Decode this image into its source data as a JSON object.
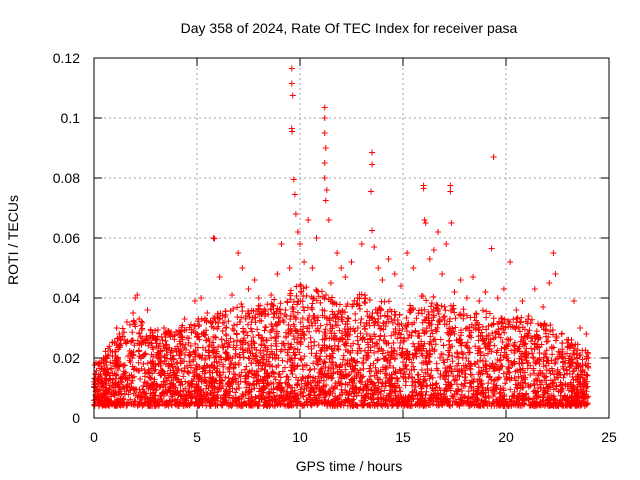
{
  "chart_data": {
    "type": "scatter",
    "title": "Day 358 of 2024, Rate Of TEC Index for receiver pasa",
    "xlabel": "GPS time / hours",
    "ylabel": "ROTI / TECUs",
    "xlim": [
      0,
      25
    ],
    "ylim": [
      0,
      0.12
    ],
    "x_ticks": [
      0,
      5,
      10,
      15,
      20,
      25
    ],
    "x_tick_labels": [
      "0",
      "5",
      "10",
      "15",
      "20",
      "25"
    ],
    "y_ticks": [
      0,
      0.02,
      0.04,
      0.06,
      0.08,
      0.1,
      0.12
    ],
    "y_tick_labels": [
      "0",
      "0.02",
      "0.04",
      "0.06",
      "0.08",
      "0.1",
      "0.12"
    ],
    "grid": true,
    "marker": "+",
    "marker_color": "#ff0000",
    "data_range_x": [
      0,
      24
    ],
    "series": [
      {
        "name": "ROTI",
        "points": [
          [
            0.1,
            0.009
          ],
          [
            0.2,
            0.018
          ],
          [
            0.4,
            0.012
          ],
          [
            0.6,
            0.015
          ],
          [
            0.9,
            0.022
          ],
          [
            1.1,
            0.03
          ],
          [
            1.3,
            0.026
          ],
          [
            1.6,
            0.032
          ],
          [
            1.9,
            0.035
          ],
          [
            2.0,
            0.04
          ],
          [
            2.1,
            0.041
          ],
          [
            2.4,
            0.018
          ],
          [
            2.6,
            0.036
          ],
          [
            2.8,
            0.025
          ],
          [
            3.1,
            0.02
          ],
          [
            3.4,
            0.03
          ],
          [
            3.7,
            0.028
          ],
          [
            4.0,
            0.022
          ],
          [
            4.2,
            0.005
          ],
          [
            4.4,
            0.033
          ],
          [
            4.7,
            0.024
          ],
          [
            4.9,
            0.039
          ],
          [
            5.2,
            0.04
          ],
          [
            5.5,
            0.035
          ],
          [
            5.8,
            0.06
          ],
          [
            5.85,
            0.0598
          ],
          [
            6.1,
            0.047
          ],
          [
            6.4,
            0.03
          ],
          [
            6.7,
            0.041
          ],
          [
            7.0,
            0.055
          ],
          [
            7.2,
            0.05
          ],
          [
            7.5,
            0.043
          ],
          [
            7.8,
            0.046
          ],
          [
            8.0,
            0.04
          ],
          [
            8.3,
            0.034
          ],
          [
            8.6,
            0.041
          ],
          [
            8.9,
            0.048
          ],
          [
            9.1,
            0.058
          ],
          [
            9.3,
            0.036
          ],
          [
            9.5,
            0.05
          ],
          [
            9.6,
            0.1165
          ],
          [
            9.6,
            0.1115
          ],
          [
            9.65,
            0.1075
          ],
          [
            9.6,
            0.0965
          ],
          [
            9.62,
            0.0955
          ],
          [
            9.7,
            0.0795
          ],
          [
            9.75,
            0.0745
          ],
          [
            9.8,
            0.068
          ],
          [
            9.9,
            0.062
          ],
          [
            10.0,
            0.058
          ],
          [
            10.2,
            0.052
          ],
          [
            10.4,
            0.066
          ],
          [
            10.6,
            0.05
          ],
          [
            10.8,
            0.06
          ],
          [
            11.2,
            0.1035
          ],
          [
            11.2,
            0.1
          ],
          [
            11.2,
            0.095
          ],
          [
            11.25,
            0.09
          ],
          [
            11.2,
            0.085
          ],
          [
            11.2,
            0.08
          ],
          [
            11.3,
            0.076
          ],
          [
            11.25,
            0.0725
          ],
          [
            11.4,
            0.066
          ],
          [
            11.5,
            0.045
          ],
          [
            11.8,
            0.055
          ],
          [
            12.0,
            0.05
          ],
          [
            12.2,
            0.047
          ],
          [
            12.5,
            0.052
          ],
          [
            12.8,
            0.04
          ],
          [
            13.0,
            0.058
          ],
          [
            13.5,
            0.0885
          ],
          [
            13.5,
            0.0845
          ],
          [
            13.45,
            0.0755
          ],
          [
            13.5,
            0.0625
          ],
          [
            13.6,
            0.057
          ],
          [
            13.8,
            0.05
          ],
          [
            14.0,
            0.046
          ],
          [
            14.3,
            0.053
          ],
          [
            14.6,
            0.048
          ],
          [
            14.9,
            0.044
          ],
          [
            15.2,
            0.055
          ],
          [
            15.5,
            0.05
          ],
          [
            16.0,
            0.0775
          ],
          [
            16.0,
            0.0765
          ],
          [
            16.05,
            0.066
          ],
          [
            16.1,
            0.065
          ],
          [
            16.3,
            0.053
          ],
          [
            16.5,
            0.056
          ],
          [
            16.7,
            0.062
          ],
          [
            16.9,
            0.048
          ],
          [
            17.1,
            0.058
          ],
          [
            17.3,
            0.0775
          ],
          [
            17.3,
            0.0755
          ],
          [
            17.35,
            0.065
          ],
          [
            17.5,
            0.042
          ],
          [
            17.8,
            0.046
          ],
          [
            18.1,
            0.04
          ],
          [
            18.4,
            0.047
          ],
          [
            18.7,
            0.039
          ],
          [
            19.0,
            0.042
          ],
          [
            19.4,
            0.087
          ],
          [
            19.3,
            0.0565
          ],
          [
            19.6,
            0.04
          ],
          [
            19.9,
            0.043
          ],
          [
            20.2,
            0.052
          ],
          [
            20.5,
            0.036
          ],
          [
            20.8,
            0.039
          ],
          [
            21.1,
            0.034
          ],
          [
            21.4,
            0.043
          ],
          [
            21.8,
            0.037
          ],
          [
            22.1,
            0.045
          ],
          [
            22.3,
            0.055
          ],
          [
            22.4,
            0.048
          ],
          [
            22.7,
            0.028
          ],
          [
            23.0,
            0.025
          ],
          [
            23.3,
            0.039
          ],
          [
            23.6,
            0.03
          ],
          [
            23.9,
            0.028
          ],
          [
            24.0,
            0.02
          ]
        ]
      }
    ]
  }
}
